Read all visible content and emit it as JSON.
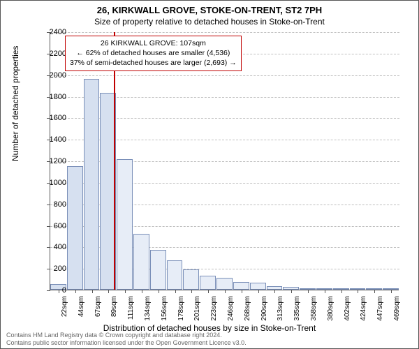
{
  "title": "26, KIRKWALL GROVE, STOKE-ON-TRENT, ST2 7PH",
  "subtitle": "Size of property relative to detached houses in Stoke-on-Trent",
  "ylabel": "Number of detached properties",
  "xlabel": "Distribution of detached houses by size in Stoke-on-Trent",
  "chart": {
    "type": "histogram",
    "ylim": [
      0,
      2400
    ],
    "ytick_step": 200,
    "bar_fill": "#d6e0f0",
    "bar_fill_dim": "#e7edf7",
    "bar_border": "#7a8fb8",
    "grid_color": "#bfbfbf",
    "background_color": "#ffffff",
    "axis_color": "#555555",
    "marker_x": 107,
    "marker_color": "#c00000",
    "categories": [
      "22sqm",
      "44sqm",
      "67sqm",
      "89sqm",
      "111sqm",
      "134sqm",
      "156sqm",
      "178sqm",
      "201sqm",
      "223sqm",
      "246sqm",
      "268sqm",
      "290sqm",
      "313sqm",
      "335sqm",
      "358sqm",
      "380sqm",
      "402sqm",
      "424sqm",
      "447sqm",
      "469sqm"
    ],
    "values": [
      50,
      1150,
      1960,
      1830,
      1210,
      520,
      370,
      270,
      185,
      130,
      110,
      70,
      65,
      35,
      25,
      15,
      10,
      10,
      8,
      5,
      5
    ],
    "dim_from_index": 4
  },
  "annotation": {
    "line1": "26 KIRKWALL GROVE: 107sqm",
    "line2": "← 62% of detached houses are smaller (4,536)",
    "line3": "37% of semi-detached houses are larger (2,693) →"
  },
  "footer": {
    "line1": "Contains HM Land Registry data © Crown copyright and database right 2024.",
    "line2": "Contains public sector information licensed under the Open Government Licence v3.0."
  }
}
